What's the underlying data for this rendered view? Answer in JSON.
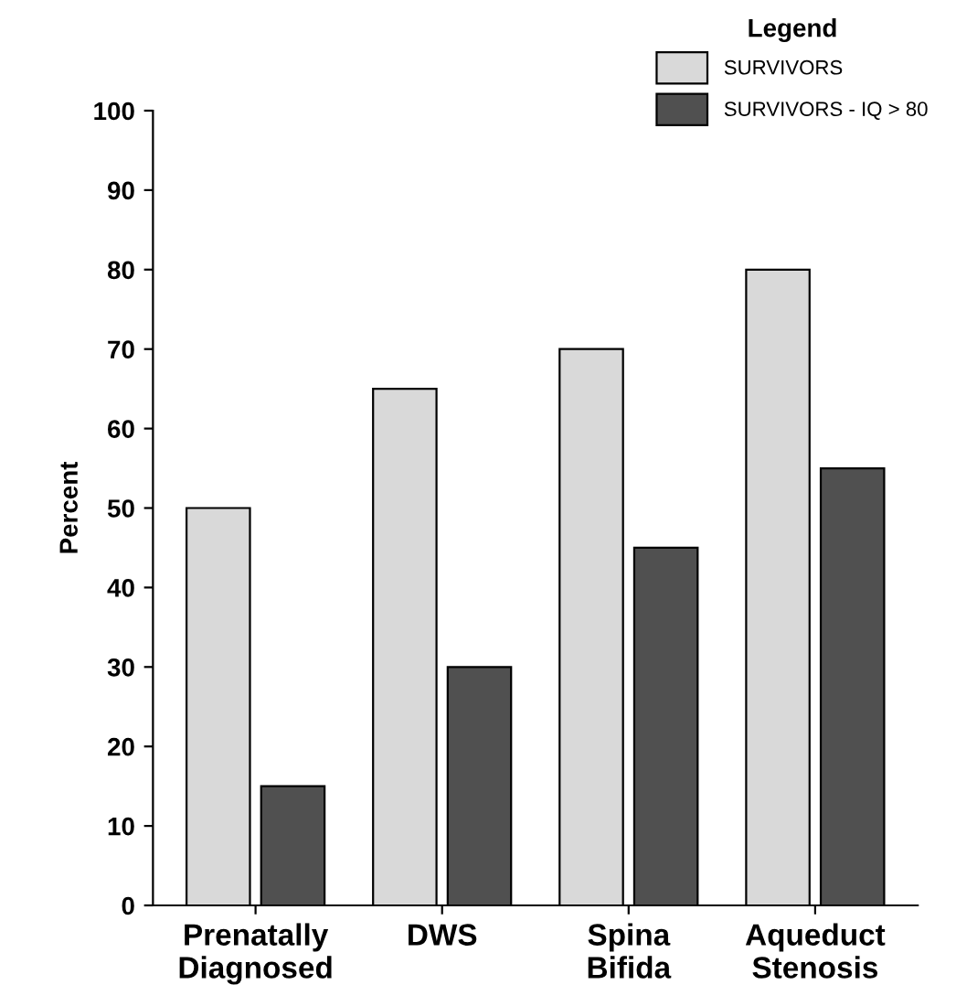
{
  "chart_data": {
    "type": "bar",
    "ylabel": "Percent",
    "legend_title": "Legend",
    "categories": [
      "Prenatally\nDiagnosed",
      "DWS",
      "Spina\nBifida",
      "Aqueduct\nStenosis"
    ],
    "series": [
      {
        "name": "SURVIVORS",
        "color": "#d9d9d9",
        "values": [
          50,
          65,
          70,
          80
        ]
      },
      {
        "name": "SURVIVORS - IQ > 80",
        "color": "#505050",
        "values": [
          15,
          30,
          45,
          55
        ]
      }
    ],
    "ylim": [
      0,
      100
    ],
    "yticks": [
      0,
      10,
      20,
      30,
      40,
      50,
      60,
      70,
      80,
      90,
      100
    ],
    "grid": false,
    "legend": "top right"
  }
}
